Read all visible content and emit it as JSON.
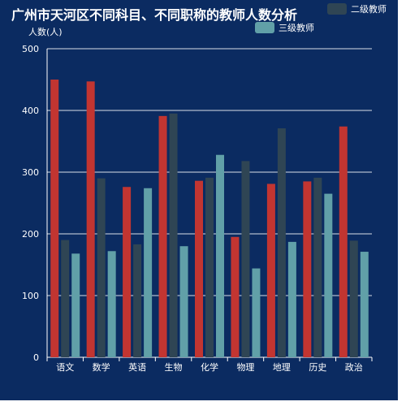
{
  "colors": {
    "background": "#0b2b61",
    "text": "#ffffff",
    "gridline": "#ffffff"
  },
  "chart_data": {
    "type": "bar",
    "title": "广州市天河区不同科目、不同职称的教师人数分析",
    "ylabel": "人数(人)",
    "xlabel": "",
    "ylim": [
      0,
      500
    ],
    "yticks": [
      0,
      100,
      200,
      300,
      400,
      500
    ],
    "grid": true,
    "legend_position": "top",
    "categories": [
      "语文",
      "数学",
      "英语",
      "生物",
      "化学",
      "物理",
      "地理",
      "历史",
      "政治"
    ],
    "series": [
      {
        "name": "",
        "color": "#c23531",
        "values": [
          450,
          447,
          276,
          391,
          286,
          195,
          281,
          285,
          374
        ]
      },
      {
        "name": "二级教师",
        "color": "#2f4554",
        "values": [
          190,
          290,
          183,
          395,
          291,
          318,
          371,
          291,
          189
        ]
      },
      {
        "name": "三级教师",
        "color": "#61a0a8",
        "values": [
          168,
          172,
          274,
          180,
          328,
          144,
          187,
          265,
          171
        ]
      }
    ]
  }
}
